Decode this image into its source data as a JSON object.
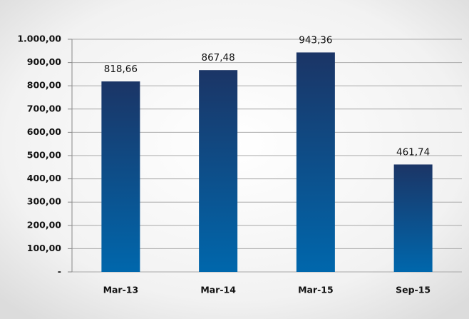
{
  "chart_data": {
    "type": "bar",
    "categories": [
      "Mar-13",
      "Mar-14",
      "Mar-15",
      "Sep-15"
    ],
    "values": [
      818.66,
      867.48,
      943.36,
      461.74
    ],
    "value_labels": [
      "818,66",
      "867,48",
      "943,36",
      "461,74"
    ],
    "gradient": [
      "#1b3566",
      "#0067ac"
    ],
    "ylim": [
      0,
      1000
    ],
    "yticks": [
      {
        "value": 0,
        "label": "-"
      },
      {
        "value": 100,
        "label": "100,00"
      },
      {
        "value": 200,
        "label": "200,00"
      },
      {
        "value": 300,
        "label": "300,00"
      },
      {
        "value": 400,
        "label": "400,00"
      },
      {
        "value": 500,
        "label": "500,00"
      },
      {
        "value": 600,
        "label": "600,00"
      },
      {
        "value": 700,
        "label": "700,00"
      },
      {
        "value": 800,
        "label": "800,00"
      },
      {
        "value": 900,
        "label": "900,00"
      },
      {
        "value": 1000,
        "label": "1.000,00"
      }
    ],
    "grid": true
  }
}
